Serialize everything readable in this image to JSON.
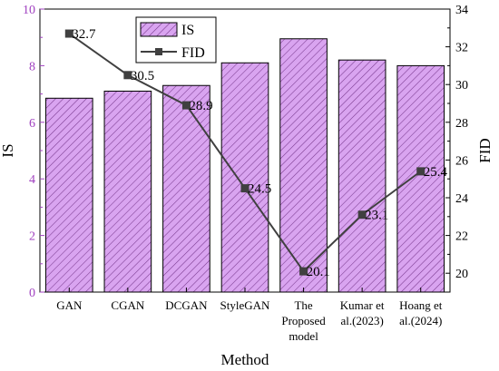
{
  "chart_data": {
    "type": "bar+line",
    "categories": [
      "GAN",
      "CGAN",
      "DCGAN",
      "StyleGAN",
      "The Proposed model",
      "Kumar et al.(2023)",
      "Hoang et al.(2024)"
    ],
    "category_label_lines": [
      [
        "GAN"
      ],
      [
        "CGAN"
      ],
      [
        "DCGAN"
      ],
      [
        "StyleGAN"
      ],
      [
        "The",
        "Proposed",
        "model"
      ],
      [
        "Kumar et",
        "al.(2023)"
      ],
      [
        "Hoang et",
        "al.(2024)"
      ]
    ],
    "series": [
      {
        "name": "IS",
        "type": "bar",
        "axis": "left",
        "values": [
          6.85,
          7.1,
          7.3,
          8.1,
          8.95,
          8.2,
          8.0
        ],
        "color": "#d9a4f0",
        "hatch_color": "#7a3a8f"
      },
      {
        "name": "FID",
        "type": "line",
        "axis": "right",
        "values": [
          32.7,
          30.5,
          28.9,
          24.5,
          20.1,
          23.1,
          25.4
        ],
        "data_labels": [
          "32.7",
          "30.5",
          "28.9",
          "24.5",
          "20.1",
          "23.1",
          "25.4"
        ],
        "color": "#404040"
      }
    ],
    "xlabel": "Method",
    "ylabel_left": "IS",
    "ylabel_right": "FID",
    "ylim_left": [
      0,
      10
    ],
    "yticks_left": [
      "0",
      "2",
      "4",
      "6",
      "8",
      "10"
    ],
    "ylim_right": [
      19,
      34
    ],
    "yticks_right": [
      "20",
      "22",
      "24",
      "26",
      "28",
      "30",
      "32",
      "34"
    ],
    "left_axis_color": "#a040c0",
    "legend": {
      "placement": "top-center",
      "entries": [
        "IS",
        "FID"
      ]
    },
    "grid": false
  }
}
